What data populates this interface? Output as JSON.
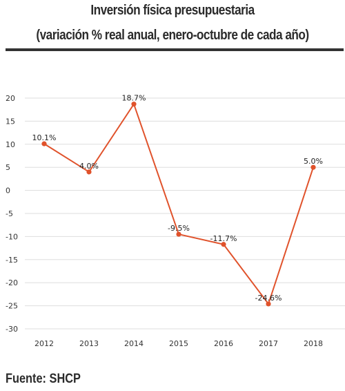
{
  "header": {
    "title": "Inversión física presupuestaria",
    "subtitle": "(variación % real anual, enero-octubre de cada año)"
  },
  "footer": {
    "source": "Fuente: SHCP"
  },
  "chart_data": {
    "type": "line",
    "title": "Inversión física presupuestaria",
    "subtitle": "(variación % real anual, enero-octubre de cada año)",
    "xlabel": "",
    "ylabel": "",
    "categories": [
      "2012",
      "2013",
      "2014",
      "2015",
      "2016",
      "2017",
      "2018"
    ],
    "series": [
      {
        "values": [
          10.1,
          4.0,
          18.7,
          -9.5,
          -11.7,
          -24.6,
          5.0
        ]
      }
    ],
    "data_labels": [
      "10.1%",
      "4.0%",
      "18.7%",
      "-9.5%",
      "-11.7%",
      "-24.6%",
      "5.0%"
    ],
    "yticks": [
      20,
      15,
      10,
      5,
      0,
      -5,
      -10,
      -15,
      -20,
      -25,
      -30
    ],
    "ylim": [
      -30,
      20
    ],
    "grid": true,
    "legend": "none",
    "colors": {
      "line": "#e0522b",
      "grid": "#dddddd"
    }
  }
}
